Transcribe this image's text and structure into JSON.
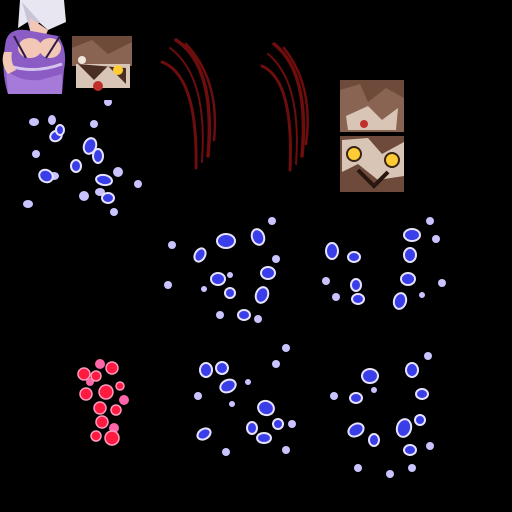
{
  "sheet": {
    "background": "#000000",
    "sprites": [
      {
        "id": "character-portrait",
        "kind": "portrait",
        "colors": {
          "hair": "#e8e6f0",
          "outfit": "#8b5cc4",
          "skin": "#f2c7b6",
          "trim": "#2a1a44"
        }
      },
      {
        "id": "brown-fragment-small",
        "kind": "fragment",
        "colors": {
          "base": "#6e4a3a",
          "light": "#d9c5b6",
          "accent": "#ffcc33"
        }
      },
      {
        "id": "blue-sparkles",
        "kind": "sparkles",
        "colors": {
          "core": "#3a3ee8",
          "glow": "#c9c3ff"
        }
      },
      {
        "id": "claw-slash-left",
        "kind": "slash",
        "colors": {
          "stroke": "#6e0d0d"
        }
      },
      {
        "id": "claw-slash-right",
        "kind": "slash",
        "colors": {
          "stroke": "#6e0d0d"
        }
      },
      {
        "id": "brown-fragment-stack",
        "kind": "fragment",
        "colors": {
          "base": "#6e4a3a",
          "light": "#d9c5b6",
          "accent": "#ffcc33"
        }
      },
      {
        "id": "sparkle-ring-1",
        "kind": "sparkles",
        "colors": {
          "core": "#3a3ee8",
          "glow": "#c9c3ff"
        }
      },
      {
        "id": "sparkle-ring-2",
        "kind": "sparkles",
        "colors": {
          "core": "#3a3ee8",
          "glow": "#c9c3ff"
        }
      },
      {
        "id": "red-sparkles",
        "kind": "sparkles",
        "colors": {
          "core": "#ff1a40",
          "glow": "#ff66aa"
        }
      },
      {
        "id": "sparkle-ring-3",
        "kind": "sparkles",
        "colors": {
          "core": "#3a3ee8",
          "glow": "#c9c3ff"
        }
      },
      {
        "id": "sparkle-ring-4",
        "kind": "sparkles",
        "colors": {
          "core": "#3a3ee8",
          "glow": "#c9c3ff"
        }
      }
    ]
  }
}
